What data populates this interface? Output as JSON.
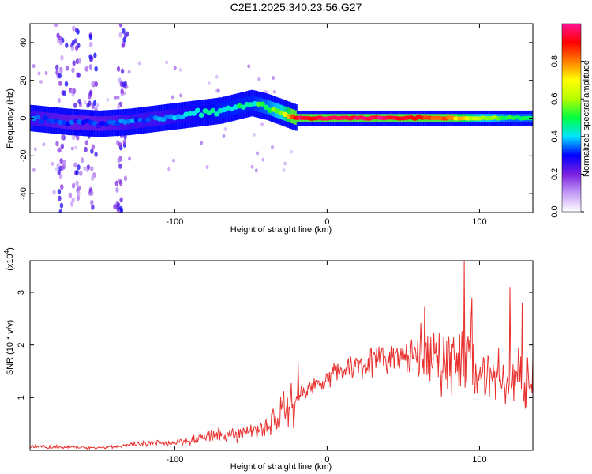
{
  "title": "C2E1.2025.340.23.56.G27",
  "chart_data": [
    {
      "type": "heatmap",
      "xlabel": "Height of straight line (km)",
      "ylabel": "Frequency (Hz)",
      "xlim": [
        -195,
        135
      ],
      "ylim": [
        -50,
        50
      ],
      "x_ticks": [
        -100,
        0,
        100
      ],
      "y_ticks": [
        -40,
        -20,
        0,
        20,
        40
      ],
      "colorbar": {
        "label": "Normalized spectral amplitude",
        "range": [
          0.0,
          1.0
        ],
        "ticks": [
          0.0,
          0.2,
          0.4,
          0.6,
          0.8
        ],
        "tick_labels": [
          "0.0",
          "0.2",
          "0.4",
          "0.6",
          "0.8"
        ],
        "colormap_stops": [
          "#ffffff",
          "#c39bf5",
          "#7a1fe0",
          "#0000ff",
          "#00e5ff",
          "#00ff40",
          "#b5ff00",
          "#ffff00",
          "#ff7f00",
          "#ff0000",
          "#ff1493"
        ]
      },
      "ridge": {
        "x": [
          -195,
          -170,
          -150,
          -130,
          -110,
          -90,
          -70,
          -60,
          -50,
          -40,
          -30,
          -20,
          0,
          20,
          40,
          60,
          80,
          100,
          120,
          135
        ],
        "center_hz": [
          0,
          -2,
          -3,
          -2,
          0,
          2,
          4,
          6,
          8,
          6,
          3,
          0,
          0,
          0,
          0,
          0,
          0,
          0,
          0,
          0
        ],
        "amplitude": [
          0.35,
          0.3,
          0.3,
          0.35,
          0.35,
          0.4,
          0.45,
          0.45,
          0.45,
          0.5,
          0.6,
          0.9,
          0.95,
          0.95,
          0.95,
          0.9,
          0.8,
          0.6,
          0.5,
          0.5
        ]
      },
      "noise_columns_x": [
        -175,
        -165,
        -155,
        -135
      ]
    },
    {
      "type": "line",
      "xlabel": "Height of straight line (km)",
      "ylabel": "SNR (10 * v/v)",
      "y_multiplier": "(x10",
      "y_multiplier_exp": "4",
      "y_multiplier_close": ")",
      "xlim": [
        -195,
        135
      ],
      "ylim": [
        0,
        3.6
      ],
      "x_ticks": [
        -100,
        0,
        100
      ],
      "y_ticks": [
        1,
        2,
        3
      ],
      "series_color": "#e8312e",
      "envelope": {
        "x": [
          -195,
          -150,
          -120,
          -100,
          -80,
          -60,
          -40,
          -30,
          -20,
          -15,
          -10,
          0,
          20,
          40,
          60,
          80,
          90,
          100,
          120,
          135
        ],
        "y": [
          0.07,
          0.05,
          0.12,
          0.15,
          0.25,
          0.3,
          0.45,
          0.7,
          1.0,
          1.1,
          1.2,
          1.4,
          1.65,
          1.75,
          1.78,
          1.7,
          1.7,
          1.5,
          1.3,
          1.5
        ]
      },
      "spikes": [
        {
          "x": -19,
          "y": 1.65
        },
        {
          "x": 90,
          "y": 3.6
        },
        {
          "x": 95,
          "y": 2.9
        },
        {
          "x": 120,
          "y": 3.1
        },
        {
          "x": 128,
          "y": 2.8
        }
      ]
    }
  ]
}
